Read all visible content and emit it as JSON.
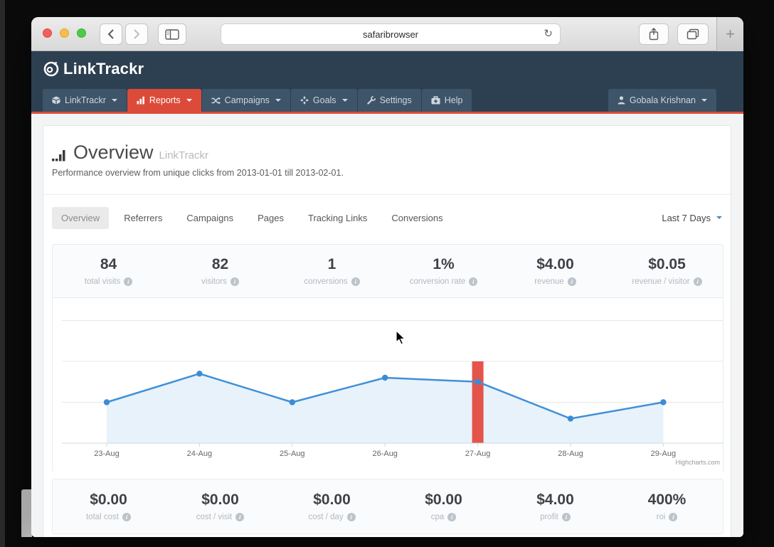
{
  "browser": {
    "address": "safaribrowser"
  },
  "site_header": {
    "brand": "LinkTrackr",
    "nav": [
      {
        "label": "LinkTrackr",
        "icon": "cube-icon",
        "caret": true,
        "active": false
      },
      {
        "label": "Reports",
        "icon": "bar-chart-icon",
        "caret": true,
        "active": true
      },
      {
        "label": "Campaigns",
        "icon": "shuffle-icon",
        "caret": true,
        "active": false
      },
      {
        "label": "Goals",
        "icon": "goals-icon",
        "caret": true,
        "active": false
      },
      {
        "label": "Settings",
        "icon": "wrench-icon",
        "caret": false,
        "active": false
      },
      {
        "label": "Help",
        "icon": "medkit-icon",
        "caret": false,
        "active": false
      }
    ],
    "user": "Gobala Krishnan"
  },
  "page": {
    "title": "Overview",
    "title_suffix": "LinkTrackr",
    "subtitle": "Performance overview from unique clicks from 2013-01-01 till 2013-02-01.",
    "tabs": [
      "Overview",
      "Referrers",
      "Campaigns",
      "Pages",
      "Tracking Links",
      "Conversions"
    ],
    "active_tab": "Overview",
    "date_range": "Last 7 Days"
  },
  "stats_top": [
    {
      "value": "84",
      "label": "total visits"
    },
    {
      "value": "82",
      "label": "visitors"
    },
    {
      "value": "1",
      "label": "conversions"
    },
    {
      "value": "1%",
      "label": "conversion rate"
    },
    {
      "value": "$4.00",
      "label": "revenue"
    },
    {
      "value": "$0.05",
      "label": "revenue / visitor"
    }
  ],
  "stats_bottom": [
    {
      "value": "$0.00",
      "label": "total cost"
    },
    {
      "value": "$0.00",
      "label": "cost / visit"
    },
    {
      "value": "$0.00",
      "label": "cost / day"
    },
    {
      "value": "$0.00",
      "label": "cpa"
    },
    {
      "value": "$4.00",
      "label": "profit"
    },
    {
      "value": "400%",
      "label": "roi"
    }
  ],
  "chart_data": {
    "type": "area",
    "categories": [
      "23-Aug",
      "24-Aug",
      "25-Aug",
      "26-Aug",
      "27-Aug",
      "28-Aug",
      "29-Aug"
    ],
    "series": [
      {
        "name": "visits",
        "values": [
          10,
          17,
          10,
          16,
          15,
          6,
          10
        ],
        "color": "#4090d8",
        "marker_color": "#3d8bd4",
        "fill_color": "#e8f2fa"
      }
    ],
    "highlight_bar": {
      "category": "27-Aug",
      "value": 20,
      "color": "#e4544a"
    },
    "ylim": [
      0,
      32
    ],
    "gridlines": [
      10,
      20,
      30
    ],
    "grid": true,
    "legend": "none",
    "xlabel": "",
    "ylabel": "",
    "credits": "Highcharts.com"
  },
  "colors": {
    "header_bg": "#2d4052",
    "nav_button_bg": "#3e5468",
    "accent_red": "#dc4b3a",
    "link_blue": "#428bca",
    "grid_line": "#e7e7e7",
    "axis_line": "#cfd8e0",
    "axis_label": "#666666"
  }
}
